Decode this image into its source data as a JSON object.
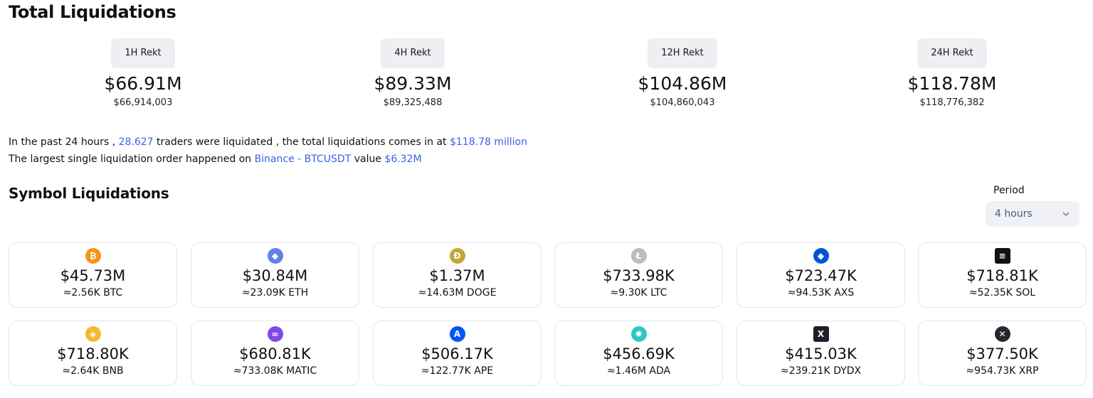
{
  "header": {
    "title": "Total Liquidations"
  },
  "rekt": [
    {
      "label": "1H Rekt",
      "big": "$66.91M",
      "exact": "$66,914,003"
    },
    {
      "label": "4H Rekt",
      "big": "$89.33M",
      "exact": "$89,325,488"
    },
    {
      "label": "12H Rekt",
      "big": "$104.86M",
      "exact": "$104,860,043"
    },
    {
      "label": "24H Rekt",
      "big": "$118.78M",
      "exact": "$118,776,382"
    }
  ],
  "summary": {
    "line1_pre": "In the past 24 hours , ",
    "traders": "28.627",
    "line1_mid": " traders were liquidated , the total liquidations comes in at ",
    "total": "$118.78 million",
    "line2_pre": "The largest single liquidation order happened on ",
    "exchange": "Binance - BTCUSDT",
    "line2_mid": " value ",
    "largest": "$6.32M"
  },
  "symbols": {
    "title": "Symbol Liquidations",
    "period_label": "Period",
    "period_value": "4 hours",
    "cards": [
      {
        "value": "$45.73M",
        "amount": "≈2.56K BTC",
        "icon": "btc-icon",
        "color": "#f7931a",
        "glyph": "₿"
      },
      {
        "value": "$30.84M",
        "amount": "≈23.09K ETH",
        "icon": "eth-icon",
        "color": "#627eea",
        "glyph": "◆"
      },
      {
        "value": "$1.37M",
        "amount": "≈14.63M DOGE",
        "icon": "doge-icon",
        "color": "#c2a633",
        "glyph": "Ð"
      },
      {
        "value": "$733.98K",
        "amount": "≈9.30K LTC",
        "icon": "ltc-icon",
        "color": "#bfbbbb",
        "glyph": "Ł"
      },
      {
        "value": "$723.47K",
        "amount": "≈94.53K AXS",
        "icon": "axs-icon",
        "color": "#0055d5",
        "glyph": "◆"
      },
      {
        "value": "$718.81K",
        "amount": "≈52.35K SOL",
        "icon": "sol-icon",
        "color": "#111111",
        "glyph": "≡"
      },
      {
        "value": "$718.80K",
        "amount": "≈2.64K BNB",
        "icon": "bnb-icon",
        "color": "#f3ba2f",
        "glyph": "◈"
      },
      {
        "value": "$680.81K",
        "amount": "≈733.08K MATIC",
        "icon": "matic-icon",
        "color": "#8247e5",
        "glyph": "∞"
      },
      {
        "value": "$506.17K",
        "amount": "≈122.77K APE",
        "icon": "ape-icon",
        "color": "#0054f9",
        "glyph": "A"
      },
      {
        "value": "$456.69K",
        "amount": "≈1.46M ADA",
        "icon": "ada-icon",
        "color": "#2fc6c6",
        "glyph": "✺"
      },
      {
        "value": "$415.03K",
        "amount": "≈239.21K DYDX",
        "icon": "dydx-icon",
        "color": "#1f1f2b",
        "glyph": "X"
      },
      {
        "value": "$377.50K",
        "amount": "≈954.73K XRP",
        "icon": "xrp-icon",
        "color": "#23292f",
        "glyph": "✕"
      }
    ]
  }
}
